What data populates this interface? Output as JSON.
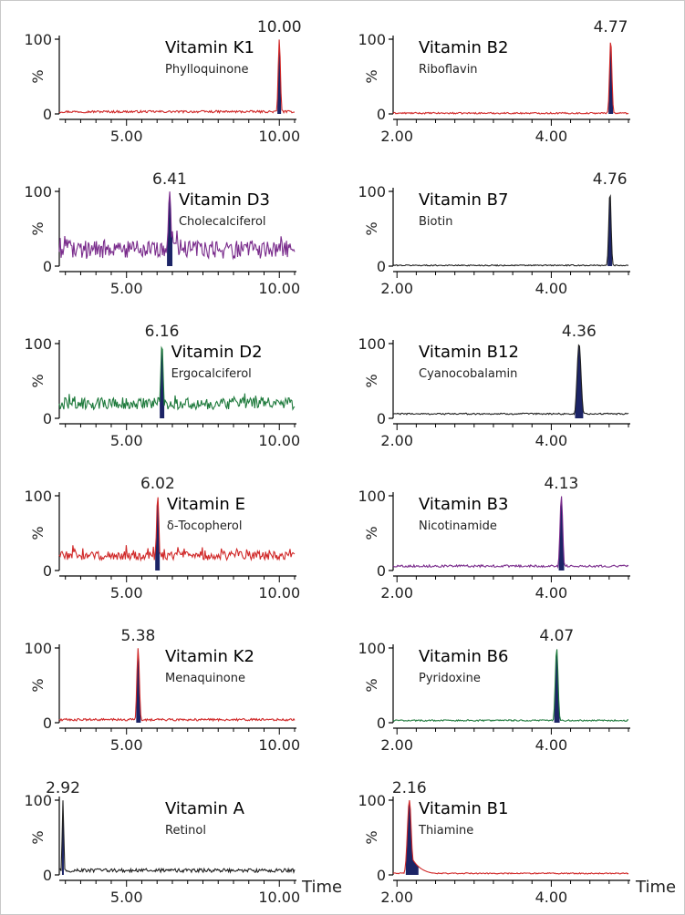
{
  "y_axis": {
    "label": "%",
    "ticks": [
      "0",
      "100"
    ]
  },
  "x_axis_title": "Time",
  "colors": {
    "red": "#d02828",
    "purple": "#7a2c8c",
    "green": "#1e7a3c",
    "black": "#202020",
    "navy": "#1c2466",
    "axis": "#000000"
  },
  "chart_data": [
    {
      "type": "line",
      "title": "Vitamin K1",
      "subtitle": "Phylloquinone",
      "peak_label": "10.00",
      "peak_rt": 10.0,
      "xlim": [
        2.8,
        10.5
      ],
      "ylim": [
        0,
        100
      ],
      "xticks": [
        "5.00",
        "10.00"
      ],
      "xtick_values": [
        5.0,
        10.0
      ],
      "trace_color": "red",
      "baseline": 3,
      "noise": 1.5,
      "peak_width": 0.07,
      "show_time": false
    },
    {
      "type": "line",
      "title": "Vitamin B2",
      "subtitle": "Riboflavin",
      "peak_label": "4.77",
      "peak_rt": 4.77,
      "xlim": [
        1.95,
        5.0
      ],
      "ylim": [
        0,
        100
      ],
      "xticks": [
        "2.00",
        "4.00"
      ],
      "xtick_values": [
        2.0,
        4.0
      ],
      "trace_color": "red",
      "baseline": 1,
      "noise": 1.0,
      "peak_width": 0.03,
      "show_time": false
    },
    {
      "type": "line",
      "title": "Vitamin D3",
      "subtitle": "Cholecalciferol",
      "peak_label": "6.41",
      "peak_rt": 6.41,
      "xlim": [
        2.8,
        10.5
      ],
      "ylim": [
        0,
        100
      ],
      "xticks": [
        "5.00",
        "10.00"
      ],
      "xtick_values": [
        5.0,
        10.0
      ],
      "trace_color": "purple",
      "baseline": 22,
      "noise": 12,
      "peak_width": 0.09,
      "show_time": false
    },
    {
      "type": "line",
      "title": "Vitamin B7",
      "subtitle": "Biotin",
      "peak_label": "4.76",
      "peak_rt": 4.76,
      "xlim": [
        1.95,
        5.0
      ],
      "ylim": [
        0,
        100
      ],
      "xticks": [
        "2.00",
        "4.00"
      ],
      "xtick_values": [
        2.0,
        4.0
      ],
      "trace_color": "black",
      "baseline": 1,
      "noise": 0.8,
      "peak_width": 0.03,
      "show_time": false
    },
    {
      "type": "line",
      "title": "Vitamin D2",
      "subtitle": "Ergocalciferol",
      "peak_label": "6.16",
      "peak_rt": 6.16,
      "xlim": [
        2.8,
        10.5
      ],
      "ylim": [
        0,
        100
      ],
      "xticks": [
        "5.00",
        "10.00"
      ],
      "xtick_values": [
        5.0,
        10.0
      ],
      "trace_color": "green",
      "baseline": 20,
      "noise": 8,
      "peak_width": 0.08,
      "show_time": false
    },
    {
      "type": "line",
      "title": "Vitamin B12",
      "subtitle": "Cyanocobalamin",
      "peak_label": "4.36",
      "peak_rt": 4.36,
      "xlim": [
        1.95,
        5.0
      ],
      "ylim": [
        0,
        100
      ],
      "xticks": [
        "2.00",
        "4.00"
      ],
      "xtick_values": [
        2.0,
        4.0
      ],
      "trace_color": "black",
      "baseline": 6,
      "noise": 1.0,
      "peak_width": 0.05,
      "show_time": false
    },
    {
      "type": "line",
      "title": "Vitamin E",
      "subtitle": "δ-Tocopherol",
      "peak_label": "6.02",
      "peak_rt": 6.02,
      "xlim": [
        2.8,
        10.5
      ],
      "ylim": [
        0,
        100
      ],
      "xticks": [
        "5.00",
        "10.00"
      ],
      "xtick_values": [
        5.0,
        10.0
      ],
      "trace_color": "red",
      "baseline": 20,
      "noise": 6,
      "peak_width": 0.08,
      "show_time": false
    },
    {
      "type": "line",
      "title": "Vitamin B3",
      "subtitle": "Nicotinamide",
      "peak_label": "4.13",
      "peak_rt": 4.13,
      "xlim": [
        1.95,
        5.0
      ],
      "ylim": [
        0,
        100
      ],
      "xticks": [
        "2.00",
        "4.00"
      ],
      "xtick_values": [
        2.0,
        4.0
      ],
      "trace_color": "purple",
      "baseline": 6,
      "noise": 1.5,
      "peak_width": 0.035,
      "show_time": false
    },
    {
      "type": "line",
      "title": "Vitamin K2",
      "subtitle": "Menaquinone",
      "peak_label": "5.38",
      "peak_rt": 5.38,
      "xlim": [
        2.8,
        10.5
      ],
      "ylim": [
        0,
        100
      ],
      "xticks": [
        "5.00",
        "10.00"
      ],
      "xtick_values": [
        5.0,
        10.0
      ],
      "trace_color": "red",
      "baseline": 4,
      "noise": 1.5,
      "peak_width": 0.08,
      "show_time": false
    },
    {
      "type": "line",
      "title": "Vitamin B6",
      "subtitle": "Pyridoxine",
      "peak_label": "4.07",
      "peak_rt": 4.07,
      "xlim": [
        1.95,
        5.0
      ],
      "ylim": [
        0,
        100
      ],
      "xticks": [
        "2.00",
        "4.00"
      ],
      "xtick_values": [
        2.0,
        4.0
      ],
      "trace_color": "green",
      "baseline": 3,
      "noise": 1.0,
      "peak_width": 0.035,
      "show_time": false
    },
    {
      "type": "line",
      "title": "Vitamin A",
      "subtitle": "Retinol",
      "peak_label": "2.92",
      "peak_rt": 2.92,
      "xlim": [
        2.8,
        10.5
      ],
      "ylim": [
        0,
        100
      ],
      "xticks": [
        "5.00",
        "10.00"
      ],
      "xtick_values": [
        5.0,
        10.0
      ],
      "trace_color": "black",
      "baseline": 6,
      "noise": 2.5,
      "peak_width": 0.05,
      "show_time": true
    },
    {
      "type": "line",
      "title": "Vitamin B1",
      "subtitle": "Thiamine",
      "peak_label": "2.16",
      "peak_rt": 2.16,
      "xlim": [
        1.95,
        5.0
      ],
      "ylim": [
        0,
        100
      ],
      "xticks": [
        "2.00",
        "4.00"
      ],
      "xtick_values": [
        2.0,
        4.0
      ],
      "trace_color": "red",
      "baseline": 2,
      "noise": 0.8,
      "peak_width": 0.05,
      "tailing": true,
      "show_time": true
    }
  ]
}
